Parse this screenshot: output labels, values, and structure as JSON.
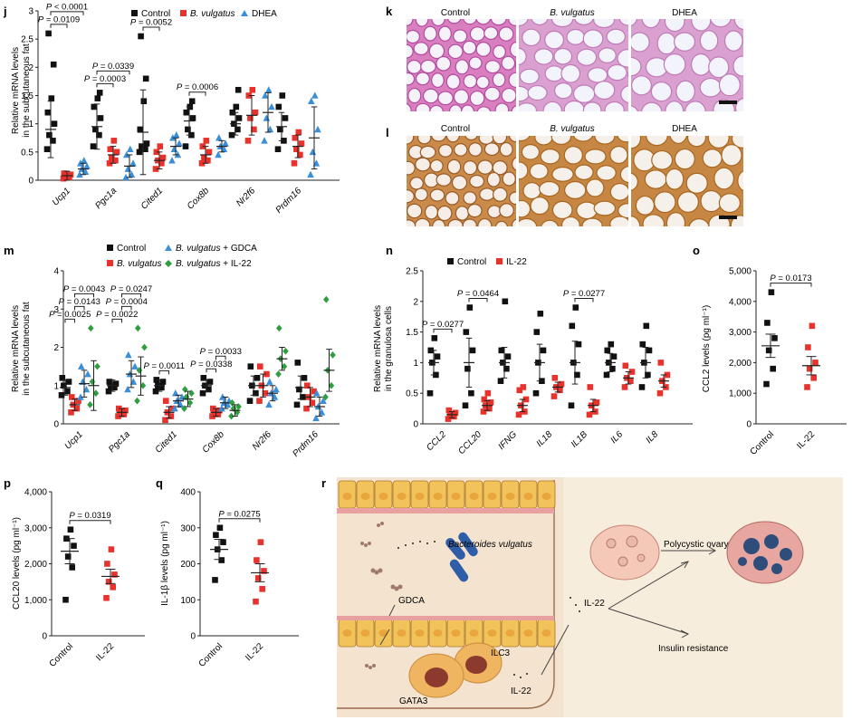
{
  "colors": {
    "control": "#111111",
    "bvulgatus": "#e8322b",
    "dhea": "#3a8fd8",
    "gdca": "#3a8fd8",
    "il22green": "#2e9e3f",
    "il22": "#e8322b"
  },
  "panel_labels": {
    "j": "j",
    "k": "k",
    "l": "l",
    "m": "m",
    "n": "n",
    "o": "o",
    "p": "p",
    "q": "q",
    "r": "r"
  },
  "chart_data": [
    {
      "panel": "j",
      "type": "scatter",
      "ylabel": "Relative mRNA levels\nin the subcutaneous fat",
      "ylim": [
        0,
        3
      ],
      "yticks": [
        0,
        0.5,
        1,
        1.5,
        2,
        2.5,
        3
      ],
      "categories": [
        "Ucp1",
        "Pgc1a",
        "Cited1",
        "Cox8b",
        "Nr2f6",
        "Prdm16"
      ],
      "legend": [
        "Control",
        "B. vulgatus",
        "DHEA"
      ],
      "series": [
        {
          "name": "Control",
          "group": 0,
          "mean": [
            0.9,
            0.95,
            0.85,
            1.05,
            1.0,
            0.95
          ],
          "sem": [
            0.5,
            0.4,
            0.75,
            0.25,
            0.2,
            0.25
          ],
          "points": [
            [
              0.55,
              0.7,
              0.8,
              1.0,
              1.2,
              1.45,
              2.05,
              2.6
            ],
            [
              0.6,
              0.8,
              0.9,
              1.1,
              1.3,
              1.45,
              1.55
            ],
            [
              0.5,
              0.55,
              0.6,
              0.65,
              0.9,
              1.4,
              1.8,
              2.55
            ],
            [
              0.6,
              0.8,
              0.9,
              1.1,
              1.2,
              1.3,
              1.4
            ],
            [
              0.8,
              0.9,
              1.0,
              1.1,
              1.2,
              1.3,
              1.6
            ],
            [
              0.55,
              0.7,
              0.9,
              1.1,
              1.3,
              1.5
            ]
          ]
        },
        {
          "name": "B. vulgatus",
          "group": 1,
          "mean": [
            0.08,
            0.45,
            0.35,
            0.45,
            1.15,
            0.6
          ],
          "sem": [
            0.08,
            0.15,
            0.15,
            0.15,
            0.35,
            0.2
          ],
          "points": [
            [
              0.03,
              0.05,
              0.08,
              0.1,
              0.12
            ],
            [
              0.3,
              0.35,
              0.4,
              0.5,
              0.55,
              0.7
            ],
            [
              0.2,
              0.3,
              0.35,
              0.4,
              0.5,
              0.6
            ],
            [
              0.3,
              0.35,
              0.4,
              0.5,
              0.6,
              0.7
            ],
            [
              0.7,
              0.9,
              1.1,
              1.2,
              1.5,
              1.6
            ],
            [
              0.3,
              0.45,
              0.55,
              0.65,
              0.75,
              0.85
            ]
          ]
        },
        {
          "name": "DHEA",
          "group": 2,
          "mean": [
            0.2,
            0.25,
            0.6,
            0.6,
            1.2,
            0.75
          ],
          "sem": [
            0.1,
            0.2,
            0.15,
            0.1,
            0.35,
            0.55
          ],
          "points": [
            [
              0.1,
              0.15,
              0.2,
              0.25,
              0.3,
              0.35
            ],
            [
              0.05,
              0.1,
              0.2,
              0.3,
              0.45,
              0.55
            ],
            [
              0.35,
              0.45,
              0.55,
              0.65,
              0.75,
              0.8
            ],
            [
              0.45,
              0.55,
              0.6,
              0.65,
              0.75
            ],
            [
              0.7,
              0.9,
              1.1,
              1.3,
              1.5,
              1.6
            ],
            [
              0.1,
              0.3,
              0.5,
              0.9,
              1.4,
              1.5
            ]
          ]
        }
      ],
      "comparisons": [
        {
          "label": "P = 0.0109",
          "cat": 0,
          "from": 0,
          "to": 1
        },
        {
          "label": "P < 0.0001",
          "cat": 0,
          "from": 0,
          "to": 2
        },
        {
          "label": "P = 0.0003",
          "cat": 1,
          "from": 0,
          "to": 1
        },
        {
          "label": "P = 0.0339",
          "cat": 1,
          "from": 0,
          "to": 2
        },
        {
          "label": "P = 0.0052",
          "cat": 2,
          "from": 0,
          "to": 1
        },
        {
          "label": "P = 0.0006",
          "cat": 3,
          "from": 0,
          "to": 1
        }
      ]
    },
    {
      "panel": "m",
      "type": "scatter",
      "ylabel": "Relative mRNA levels\nin the subcutaneous fat",
      "ylim": [
        0,
        4
      ],
      "yticks": [
        0,
        1,
        2,
        3,
        4
      ],
      "categories": [
        "Ucp1",
        "Pgc1a",
        "Cited1",
        "Cox8b",
        "Nr2f6",
        "Prdm16"
      ],
      "legend": [
        "Control",
        "B. vulgatus",
        "B. vulgatus + GDCA",
        "B. vulgatus + IL-22"
      ],
      "series": [
        {
          "name": "Control",
          "group": 0,
          "mean": [
            0.95,
            1.0,
            1.0,
            1.0,
            1.0,
            0.95
          ],
          "sem": [
            0.2,
            0.15,
            0.15,
            0.15,
            0.25,
            0.3
          ],
          "points": [
            [
              0.75,
              0.85,
              1.0,
              1.1,
              1.2
            ],
            [
              0.85,
              0.95,
              1.0,
              1.05,
              1.1
            ],
            [
              0.85,
              0.95,
              1.0,
              1.1,
              1.15
            ],
            [
              0.8,
              0.9,
              1.0,
              1.1,
              1.2
            ],
            [
              0.6,
              0.8,
              1.0,
              1.2,
              1.5
            ],
            [
              0.5,
              0.7,
              0.9,
              1.2,
              1.6
            ]
          ]
        },
        {
          "name": "B. vulgatus",
          "group": 1,
          "mean": [
            0.5,
            0.3,
            0.3,
            0.3,
            1.0,
            0.7
          ],
          "sem": [
            0.15,
            0.1,
            0.15,
            0.1,
            0.3,
            0.25
          ],
          "points": [
            [
              0.3,
              0.4,
              0.5,
              0.6,
              0.7
            ],
            [
              0.2,
              0.25,
              0.3,
              0.35,
              0.4
            ],
            [
              0.1,
              0.2,
              0.3,
              0.4,
              0.6
            ],
            [
              0.2,
              0.25,
              0.3,
              0.35,
              0.4
            ],
            [
              0.6,
              0.8,
              1.0,
              1.3,
              1.5
            ],
            [
              0.4,
              0.55,
              0.7,
              0.85,
              1.0
            ]
          ]
        },
        {
          "name": "B. vulgatus + GDCA",
          "group": 2,
          "mean": [
            1.05,
            1.3,
            0.6,
            0.55,
            0.8,
            0.45
          ],
          "sem": [
            0.35,
            0.35,
            0.15,
            0.15,
            0.2,
            0.25
          ],
          "points": [
            [
              0.7,
              0.9,
              1.1,
              1.3,
              1.5
            ],
            [
              0.9,
              1.1,
              1.3,
              1.5,
              1.8
            ],
            [
              0.4,
              0.5,
              0.6,
              0.7,
              0.8
            ],
            [
              0.4,
              0.5,
              0.55,
              0.6,
              0.7
            ],
            [
              0.5,
              0.7,
              0.8,
              0.9,
              1.1
            ],
            [
              0.15,
              0.3,
              0.45,
              0.6,
              0.8
            ]
          ]
        },
        {
          "name": "B. vulgatus + IL-22",
          "group": 3,
          "mean": [
            1.0,
            1.25,
            0.65,
            0.35,
            1.7,
            1.4
          ],
          "sem": [
            0.65,
            0.5,
            0.2,
            0.15,
            0.3,
            0.55
          ],
          "points": [
            [
              0.5,
              0.8,
              1.1,
              1.5,
              2.5
            ],
            [
              0.6,
              1.0,
              1.4,
              2.0,
              2.5
            ],
            [
              0.4,
              0.55,
              0.7,
              0.8,
              0.9
            ],
            [
              0.2,
              0.3,
              0.4,
              0.45,
              0.55
            ],
            [
              1.3,
              1.5,
              1.7,
              1.9,
              2.5
            ],
            [
              0.7,
              1.0,
              1.4,
              1.8,
              3.25
            ]
          ]
        }
      ],
      "comparisons": [
        {
          "label": "P = 0.0025",
          "cat": 0,
          "from": 0,
          "to": 1
        },
        {
          "label": "P = 0.0143",
          "cat": 0,
          "from": 1,
          "to": 2
        },
        {
          "label": "P = 0.0043",
          "cat": 0,
          "from": 1,
          "to": 3
        },
        {
          "label": "P = 0.0022",
          "cat": 1,
          "from": 0,
          "to": 1
        },
        {
          "label": "P = 0.0004",
          "cat": 1,
          "from": 1,
          "to": 2
        },
        {
          "label": "P = 0.0247",
          "cat": 1,
          "from": 1,
          "to": 3
        },
        {
          "label": "P = 0.0011",
          "cat": 2,
          "from": 0,
          "to": 1
        },
        {
          "label": "P = 0.0338",
          "cat": 3,
          "from": 0,
          "to": 1
        },
        {
          "label": "P = 0.0033",
          "cat": 3,
          "from": 1,
          "to": 2
        }
      ]
    },
    {
      "panel": "n",
      "type": "scatter",
      "ylabel": "Relative mRNA levels\nin the granulosa cells",
      "ylim": [
        0,
        2.5
      ],
      "yticks": [
        0,
        0.5,
        1,
        1.5,
        2,
        2.5
      ],
      "categories": [
        "CCL2",
        "CCL20",
        "IFNG",
        "IL18",
        "IL1B",
        "IL6",
        "IL8"
      ],
      "legend": [
        "Control",
        "IL-22"
      ],
      "series": [
        {
          "name": "Control",
          "group": 0,
          "mean": [
            1.0,
            1.0,
            1.0,
            1.0,
            1.0,
            1.0,
            1.0
          ],
          "sem": [
            0.2,
            0.4,
            0.25,
            0.3,
            0.35,
            0.15,
            0.25
          ],
          "points": [
            [
              0.5,
              0.8,
              1.0,
              1.1,
              1.2,
              1.4
            ],
            [
              0.3,
              0.5,
              0.9,
              1.2,
              1.5,
              1.9
            ],
            [
              0.7,
              0.9,
              1.0,
              1.1,
              1.2,
              2.0
            ],
            [
              0.5,
              0.7,
              1.0,
              1.2,
              1.5,
              1.8
            ],
            [
              0.3,
              0.8,
              1.0,
              1.3,
              1.6,
              1.9
            ],
            [
              0.8,
              0.9,
              1.0,
              1.1,
              1.2,
              1.3
            ],
            [
              0.6,
              0.8,
              1.0,
              1.2,
              1.3,
              1.6
            ]
          ]
        },
        {
          "name": "IL-22",
          "group": 1,
          "mean": [
            0.15,
            0.3,
            0.3,
            0.6,
            0.3,
            0.75,
            0.7
          ],
          "sem": [
            0.05,
            0.08,
            0.1,
            0.08,
            0.1,
            0.1,
            0.1
          ],
          "points": [
            [
              0.08,
              0.12,
              0.15,
              0.18,
              0.22
            ],
            [
              0.2,
              0.25,
              0.3,
              0.35,
              0.4,
              0.5
            ],
            [
              0.15,
              0.2,
              0.3,
              0.4,
              0.55,
              0.6
            ],
            [
              0.45,
              0.55,
              0.6,
              0.65,
              0.75
            ],
            [
              0.15,
              0.2,
              0.3,
              0.35,
              0.6
            ],
            [
              0.6,
              0.7,
              0.75,
              0.85,
              0.95
            ],
            [
              0.5,
              0.6,
              0.7,
              0.8,
              1.0
            ]
          ]
        }
      ],
      "comparisons": [
        {
          "label": "P = 0.0277",
          "cat": 0,
          "from": 0,
          "to": 1
        },
        {
          "label": "P = 0.0464",
          "cat": 1,
          "from": 0,
          "to": 1
        },
        {
          "label": "P = 0.0277",
          "cat": 4,
          "from": 0,
          "to": 1
        }
      ]
    },
    {
      "panel": "o",
      "type": "scatter",
      "ylabel": "CCL2 levels (pg ml⁻¹)",
      "ylim": [
        0,
        5000
      ],
      "yticks": [
        0,
        1000,
        2000,
        3000,
        4000,
        5000
      ],
      "ytick_labels": [
        "0",
        "1,000",
        "2,000",
        "3,000",
        "4,000",
        "5,000"
      ],
      "categories": [
        "Control",
        "IL-22"
      ],
      "series": [
        {
          "name": "Control",
          "group": 0,
          "mean": [
            2550
          ],
          "sem": [
            380
          ],
          "points": [
            [
              1300,
              1800,
              2400,
              2800,
              3300,
              4300
            ]
          ]
        },
        {
          "name": "IL-22",
          "group": 1,
          "mean": [
            1900
          ],
          "sem": [
            300
          ],
          "points": [
            [
              1200,
              1500,
              1800,
              2000,
              2500,
              3200
            ]
          ]
        }
      ],
      "comparisons": [
        {
          "label": "P = 0.0173",
          "cat": -1,
          "from": 0,
          "to": 1
        }
      ]
    },
    {
      "panel": "p",
      "type": "scatter",
      "ylabel": "CCL20 levels (pg ml⁻¹)",
      "ylim": [
        0,
        4000
      ],
      "yticks": [
        0,
        1000,
        2000,
        3000,
        4000
      ],
      "ytick_labels": [
        "0",
        "1,000",
        "2,000",
        "3,000",
        "4,000"
      ],
      "categories": [
        "Control",
        "IL-22"
      ],
      "series": [
        {
          "name": "Control",
          "group": 0,
          "mean": [
            2350
          ],
          "sem": [
            350
          ],
          "points": [
            [
              1000,
              1900,
              2200,
              2500,
              2700,
              2950
            ]
          ]
        },
        {
          "name": "IL-22",
          "group": 1,
          "mean": [
            1650
          ],
          "sem": [
            200
          ],
          "points": [
            [
              1050,
              1350,
              1500,
              1700,
              2000,
              2400
            ]
          ]
        }
      ],
      "comparisons": [
        {
          "label": "P = 0.0319",
          "cat": -1,
          "from": 0,
          "to": 1
        }
      ]
    },
    {
      "panel": "q",
      "type": "scatter",
      "ylabel": "IL-1β levels (pg ml⁻¹)",
      "ylim": [
        0,
        400
      ],
      "yticks": [
        0,
        100,
        200,
        300,
        400
      ],
      "categories": [
        "Control",
        "IL-22"
      ],
      "series": [
        {
          "name": "Control",
          "group": 0,
          "mean": [
            240
          ],
          "sem": [
            28
          ],
          "points": [
            [
              155,
              210,
              240,
              260,
              280,
              300
            ]
          ]
        },
        {
          "name": "IL-22",
          "group": 1,
          "mean": [
            175
          ],
          "sem": [
            25
          ],
          "points": [
            [
              95,
              130,
              160,
              180,
              210,
              260
            ]
          ]
        }
      ],
      "comparisons": [
        {
          "label": "P = 0.0275",
          "cat": -1,
          "from": 0,
          "to": 1
        }
      ]
    }
  ],
  "micro": {
    "k_labels": [
      "Control",
      "B. vulgatus",
      "DHEA"
    ],
    "l_labels": [
      "Control",
      "B. vulgatus",
      "DHEA"
    ]
  },
  "schematic": {
    "bacteria": "Bacteroides vulgatus",
    "gdca": "GDCA",
    "il22_top": "IL-22",
    "il22_bottom": "IL-22",
    "ilc3": "ILC3",
    "gata3": "GATA3",
    "pco": "Polycystic ovary",
    "ir": "Insulin resistance"
  }
}
